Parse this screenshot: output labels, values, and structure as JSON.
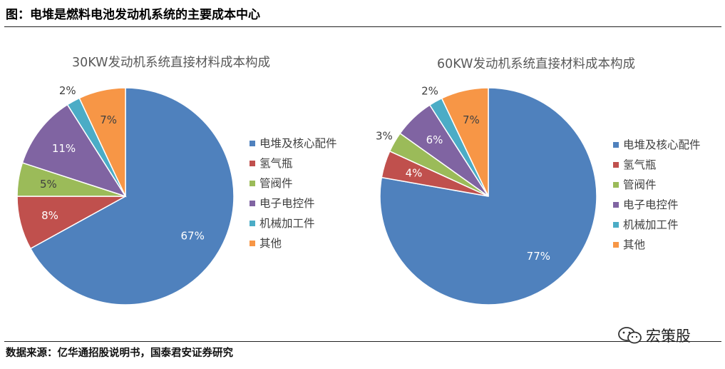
{
  "header": {
    "title": "图：电堆是燃料电池发动机系统的主要成本中心"
  },
  "colors": {
    "blue": "#4f81bd",
    "red": "#c0504d",
    "green": "#9bbb59",
    "purple": "#8064a2",
    "cyan": "#4bacc6",
    "orange": "#f79646"
  },
  "chart_data": [
    {
      "type": "pie",
      "title": "30KW发动机系统直接材料成本构成",
      "categories": [
        "电堆及核心配件",
        "氢气瓶",
        "管阀件",
        "电子电控件",
        "机械加工件",
        "其他"
      ],
      "values": [
        67,
        8,
        5,
        11,
        2,
        7
      ],
      "labels": [
        "67%",
        "8%",
        "5%",
        "11%",
        "2%",
        "7%"
      ],
      "colors": [
        "#4f81bd",
        "#c0504d",
        "#9bbb59",
        "#8064a2",
        "#4bacc6",
        "#f79646"
      ],
      "legend": "right"
    },
    {
      "type": "pie",
      "title": "60KW发动机系统直接材料成本构成",
      "categories": [
        "电堆及核心配件",
        "氢气瓶",
        "管阀件",
        "电子电控件",
        "机械加工件",
        "其他"
      ],
      "values": [
        77,
        4,
        3,
        6,
        2,
        7
      ],
      "labels": [
        "77%",
        "4%",
        "3%",
        "6%",
        "2%",
        "7%"
      ],
      "colors": [
        "#4f81bd",
        "#c0504d",
        "#9bbb59",
        "#8064a2",
        "#4bacc6",
        "#f79646"
      ],
      "legend": "right"
    }
  ],
  "footer": {
    "source": "数据来源：亿华通招股说明书，国泰君安证券研究",
    "watermark_text": "宏策股",
    "watermark_icon": "wechat-icon"
  }
}
